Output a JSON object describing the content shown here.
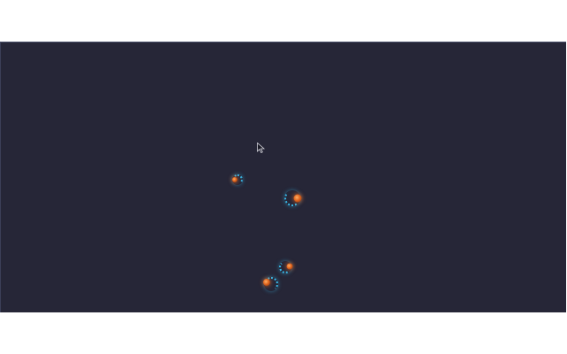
{
  "colors": {
    "background": "#262637",
    "core": "#e0651e",
    "orbit": "#38b8e8"
  },
  "particles": [
    {
      "id": "p1",
      "kind": "small"
    },
    {
      "id": "p2",
      "kind": "large"
    },
    {
      "id": "p3",
      "kind": "medium"
    },
    {
      "id": "p4",
      "kind": "medium"
    }
  ],
  "cursor_icon": "arrow-cursor-icon"
}
